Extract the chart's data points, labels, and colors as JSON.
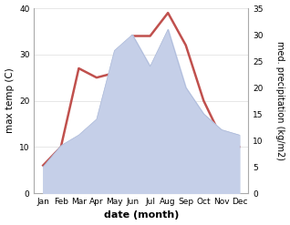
{
  "months": [
    "Jan",
    "Feb",
    "Mar",
    "Apr",
    "May",
    "Jun",
    "Jul",
    "Aug",
    "Sep",
    "Oct",
    "Nov",
    "Dec"
  ],
  "month_indices": [
    1,
    2,
    3,
    4,
    5,
    6,
    7,
    8,
    9,
    10,
    11,
    12
  ],
  "temperature": [
    6,
    10,
    27,
    25,
    26,
    34,
    34,
    39,
    32,
    20,
    12,
    10
  ],
  "precipitation": [
    5,
    9,
    11,
    14,
    27,
    30,
    24,
    31,
    20,
    15,
    12,
    11
  ],
  "temp_color": "#c0504d",
  "precip_color_fill": "#c5cfe8",
  "precip_color_edge": "#aab8d8",
  "temp_ylim": [
    0,
    40
  ],
  "precip_ylim": [
    0,
    35
  ],
  "temp_yticks": [
    0,
    10,
    20,
    30,
    40
  ],
  "precip_yticks": [
    0,
    5,
    10,
    15,
    20,
    25,
    30,
    35
  ],
  "xlabel": "date (month)",
  "ylabel_left": "max temp (C)",
  "ylabel_right": "med. precipitation (kg/m2)",
  "line_width": 1.8,
  "bg_color": "#ffffff",
  "grid_color": "#dddddd"
}
